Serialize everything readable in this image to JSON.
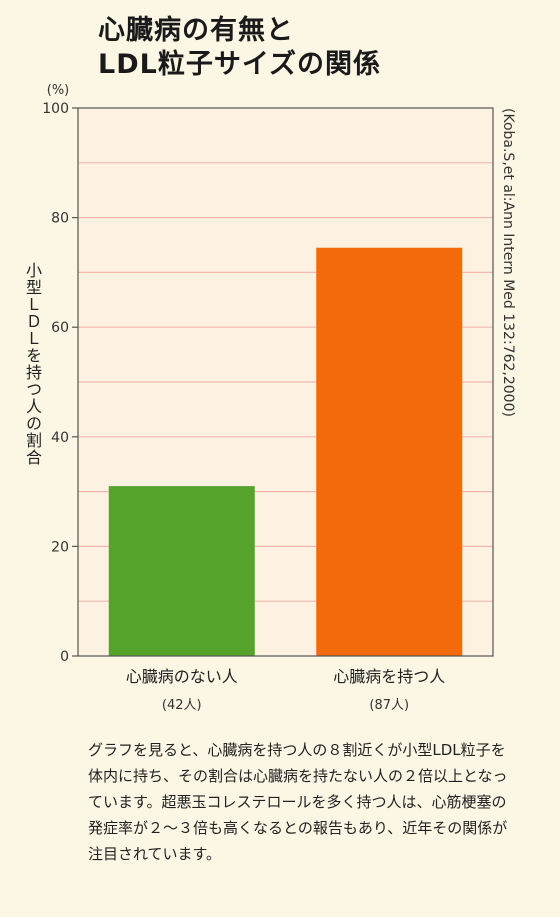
{
  "title_line1": "心臓病の有無と",
  "title_line2": "LDL粒子サイズの関係",
  "citation": "(Koba.S,et al:Ann Intern Med 132:762,2000)",
  "description": "グラフを見ると、心臓病を持つ人の８割近くが小型LDL粒子を体内に持ち、その割合は心臓病を持たない人の２倍以上となっています。超悪玉コレステロールを多く持つ人は、心筋梗塞の発症率が２〜３倍も高くなるとの報告もあり、近年その関係が注目されています。",
  "chart_data": {
    "type": "bar",
    "ylabel": "小型ＬＤＬを持つ人の割合",
    "yunit": "(%)",
    "ylim": [
      0,
      100
    ],
    "yticks": [
      0,
      20,
      40,
      60,
      80,
      100
    ],
    "grid": true,
    "categories": [
      {
        "label": "心臓病のない人",
        "sublabel": "(42人)"
      },
      {
        "label": "心臓病を持つ人",
        "sublabel": "(87人)"
      }
    ],
    "values": [
      31,
      74.5
    ],
    "colors": [
      "#55a32b",
      "#f26a0c"
    ],
    "plot_background": "#fdf2e1",
    "grid_color": "#f2b8b0"
  }
}
